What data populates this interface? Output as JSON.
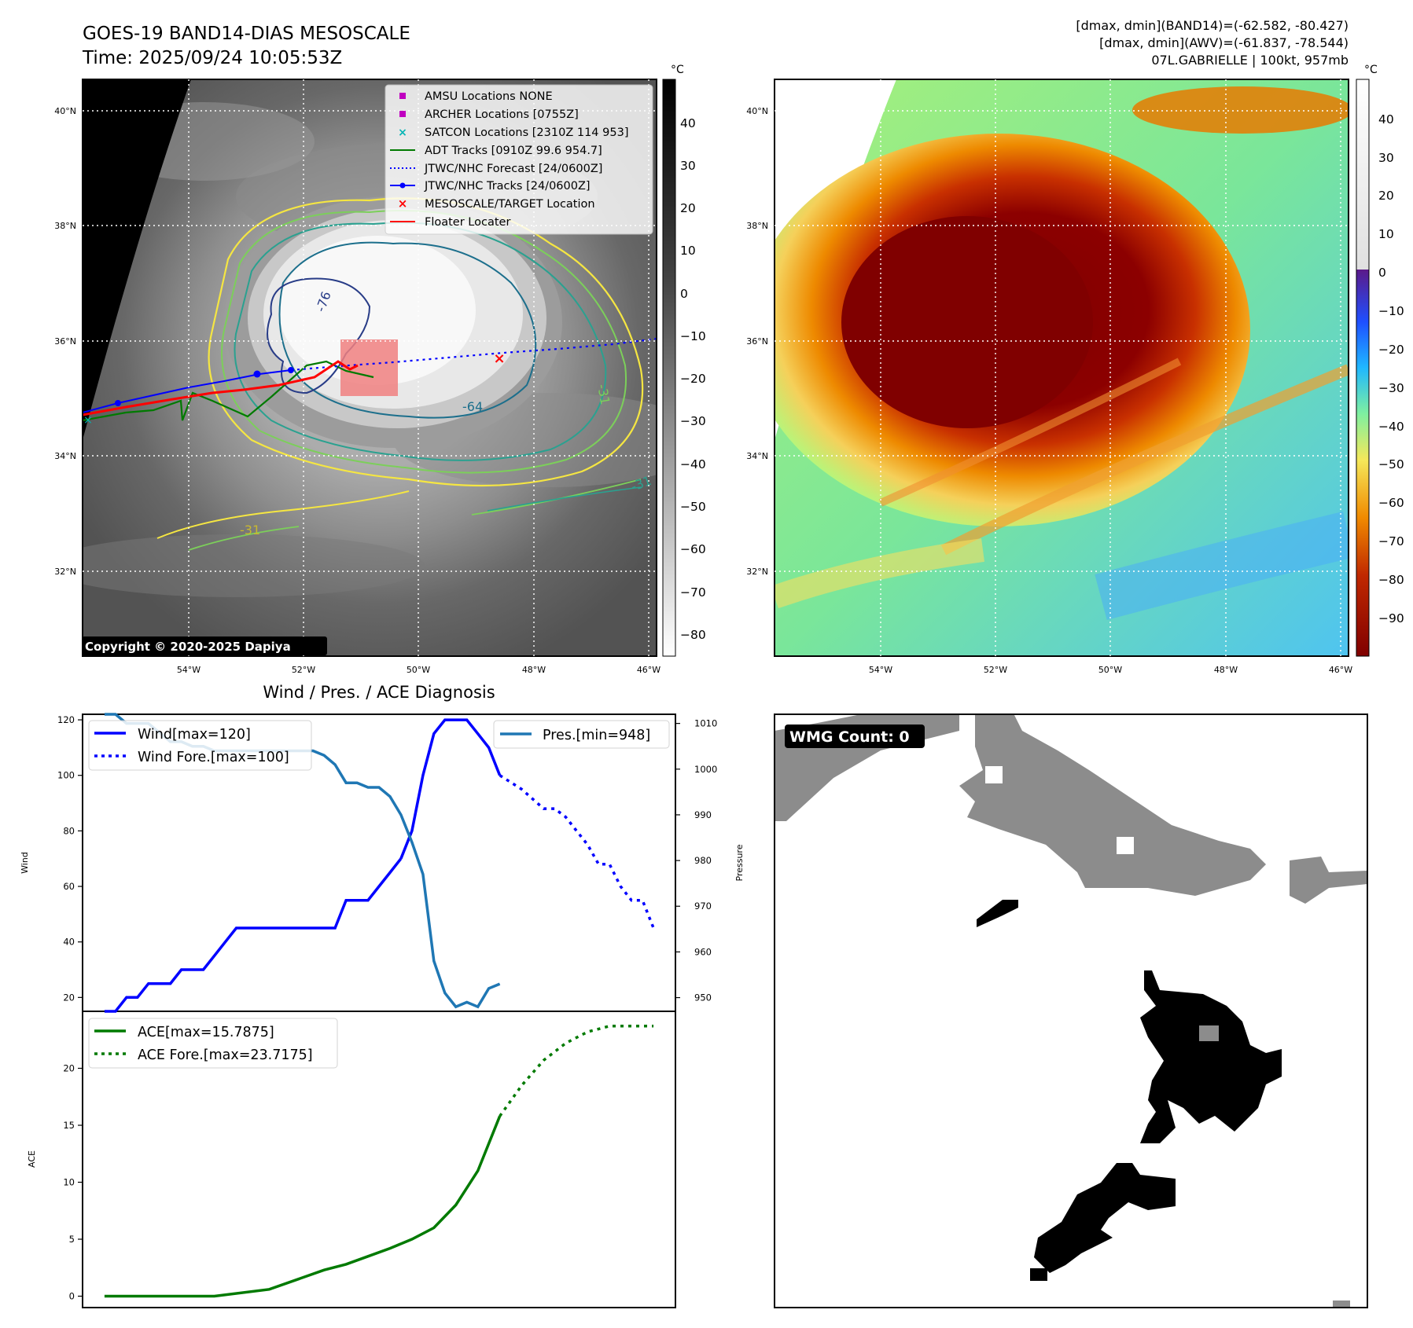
{
  "header": {
    "title_line1": "GOES-19 BAND14-DIAS MESOSCALE",
    "title_line2": "Time: 2025/09/24 10:05:53Z",
    "right_line1": "[dmax, dmin](BAND14)=(-62.582, -80.427)",
    "right_line2": "[dmax, dmin](AWV)=(-61.837, -78.544)",
    "right_line3": "07L.GABRIELLE | 100kt, 957mb"
  },
  "map": {
    "lat_labels": [
      "40°N",
      "38°N",
      "36°N",
      "34°N",
      "32°N"
    ],
    "lon_labels": [
      "54°W",
      "52°W",
      "50°W",
      "48°W",
      "46°W"
    ],
    "copyright": "Copyright © 2020-2025 Dapiya",
    "contour_labels": [
      "-76",
      "-64",
      "-31",
      "-31",
      "-31"
    ]
  },
  "legend": {
    "items": [
      {
        "label": "AMSU Locations NONE",
        "color": "#c000c0",
        "marker": "square"
      },
      {
        "label": "ARCHER Locations [0755Z]",
        "color": "#c000c0",
        "marker": "square"
      },
      {
        "label": "SATCON Locations [2310Z 114 953]",
        "color": "#00b5b5",
        "marker": "x"
      },
      {
        "label": "ADT Tracks [0910Z 99.6 954.7]",
        "color": "#007a00",
        "marker": "line"
      },
      {
        "label": "JTWC/NHC Forecast [24/0600Z]",
        "color": "#0000ff",
        "marker": "dotted"
      },
      {
        "label": "JTWC/NHC Tracks [24/0600Z]",
        "color": "#0000ff",
        "marker": "line-dot"
      },
      {
        "label": "MESOSCALE/TARGET Location",
        "color": "#ff0000",
        "marker": "x"
      },
      {
        "label": "Floater Locater",
        "color": "#ff0000",
        "marker": "line"
      }
    ]
  },
  "colorbar_gray": {
    "unit": "°C",
    "ticks": [
      "40",
      "30",
      "20",
      "10",
      "0",
      "−10",
      "−20",
      "−30",
      "−40",
      "−50",
      "−60",
      "−70",
      "−80"
    ]
  },
  "colorbar_color": {
    "unit": "°C",
    "ticks": [
      "40",
      "30",
      "20",
      "10",
      "0",
      "−10",
      "−20",
      "−30",
      "−40",
      "−50",
      "−60",
      "−70",
      "−80",
      "−90"
    ]
  },
  "diag": {
    "title": "Wind / Pres. / ACE Diagnosis",
    "wind_ylabel": "Wind",
    "pres_ylabel": "Pressure",
    "ace_ylabel": "ACE",
    "wind_ticks": [
      "120",
      "100",
      "80",
      "60",
      "40",
      "20"
    ],
    "pres_ticks": [
      "1010",
      "1000",
      "990",
      "980",
      "970",
      "960",
      "950"
    ],
    "ace_ticks": [
      "20",
      "15",
      "10",
      "5",
      "0"
    ],
    "legend_wind": "Wind[max=120]",
    "legend_wind_fore": "Wind Fore.[max=100]",
    "legend_pres": "Pres.[min=948]",
    "legend_ace": "ACE[max=15.7875]",
    "legend_ace_fore": "ACE Fore.[max=23.7175]"
  },
  "wmg": {
    "label": "WMG Count: 0"
  },
  "chart_data": [
    {
      "type": "line",
      "title": "Wind / Pres. / ACE Diagnosis",
      "ylabel": "Wind",
      "ylim": [
        15,
        122
      ],
      "x": [
        0,
        1,
        2,
        3,
        4,
        5,
        6,
        7,
        8,
        9,
        10,
        11,
        12,
        13,
        14,
        15,
        16,
        17,
        18,
        19,
        20,
        21,
        22,
        23,
        24,
        25,
        26,
        27,
        28,
        29,
        30,
        31,
        32,
        33,
        34,
        35,
        36,
        37,
        38,
        39,
        40,
        41,
        42
      ],
      "series": [
        {
          "name": "Wind[max=120]",
          "x": [
            0,
            1,
            2,
            3,
            4,
            5,
            6,
            7,
            8,
            9,
            10,
            11,
            12,
            13,
            14,
            15,
            16,
            17,
            18,
            19,
            20,
            21,
            22,
            23,
            24,
            25,
            26,
            27
          ],
          "values": [
            15,
            15,
            20,
            20,
            25,
            25,
            25,
            30,
            30,
            30,
            35,
            40,
            45,
            45,
            45,
            45,
            45,
            45,
            45,
            45,
            45,
            45,
            55,
            55,
            55,
            60,
            65,
            70
          ]
        },
        {
          "name": "Wind[max=120]",
          "x": [
            27,
            28,
            29,
            30,
            31,
            32,
            33,
            34,
            35,
            36
          ],
          "values": [
            70,
            80,
            100,
            115,
            120,
            120,
            120,
            115,
            110,
            100
          ]
        },
        {
          "name": "Wind Fore.[max=100]",
          "x": [
            36,
            38,
            40,
            41,
            42,
            43,
            44,
            45,
            46,
            47,
            48,
            49,
            50
          ],
          "values": [
            100,
            95,
            88,
            88,
            85,
            80,
            75,
            68,
            68,
            60,
            55,
            55,
            45
          ]
        }
      ]
    },
    {
      "type": "line",
      "ylabel": "Pressure",
      "ylim": [
        947,
        1012
      ],
      "series": [
        {
          "name": "Pres.[min=948]",
          "x": [
            0,
            1,
            2,
            3,
            4,
            5,
            6,
            7,
            8,
            9,
            10,
            11,
            12,
            13,
            14,
            15,
            16,
            17,
            18,
            19,
            20,
            21,
            22,
            23,
            24,
            25,
            26,
            27,
            28,
            29,
            30,
            31,
            32,
            33,
            34,
            35,
            36
          ],
          "values": [
            1012,
            1012,
            1010,
            1010,
            1010,
            1008,
            1006,
            1006,
            1005,
            1005,
            1004,
            1004,
            1004,
            1004,
            1004,
            1004,
            1004,
            1004,
            1004,
            1004,
            1003,
            1001,
            997,
            997,
            996,
            996,
            994,
            990,
            984,
            977,
            958,
            951,
            948,
            949,
            948,
            952,
            953
          ]
        }
      ]
    },
    {
      "type": "line",
      "ylabel": "ACE",
      "ylim": [
        -1,
        25
      ],
      "series": [
        {
          "name": "ACE[max=15.7875]",
          "x": [
            0,
            5,
            10,
            15,
            20,
            22,
            24,
            26,
            28,
            30,
            32,
            34,
            36
          ],
          "values": [
            0,
            0,
            0,
            0.6,
            2.3,
            2.8,
            3.5,
            4.2,
            5,
            6,
            8,
            11,
            15.8
          ]
        },
        {
          "name": "ACE Fore.[max=23.7175]",
          "x": [
            36,
            38,
            40,
            42,
            44,
            46,
            48,
            50
          ],
          "values": [
            15.8,
            18.5,
            20.7,
            22.2,
            23.2,
            23.7,
            23.7,
            23.7
          ]
        }
      ]
    }
  ]
}
